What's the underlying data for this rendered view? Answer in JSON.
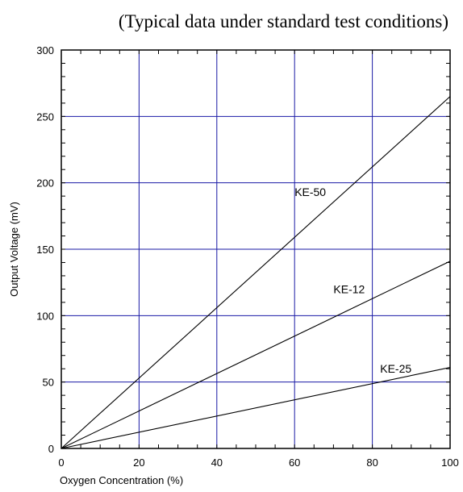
{
  "chart_data": {
    "type": "line",
    "title": "",
    "subtitle": "(Typical data under standard test conditions)",
    "xlabel": "Oxygen Concentration (%)",
    "ylabel": "Output Voltage (mV)",
    "xlim": [
      0,
      100
    ],
    "ylim": [
      0,
      300
    ],
    "xticks": [
      0,
      20,
      40,
      60,
      80,
      100
    ],
    "yticks": [
      0,
      50,
      100,
      150,
      200,
      250,
      300
    ],
    "grid": true,
    "legend": "none",
    "colors": {
      "grid": "#1a1aa6",
      "series": "#000000",
      "frame": "#000000"
    },
    "series": [
      {
        "name": "KE-50",
        "x": [
          0,
          100
        ],
        "y": [
          0,
          265
        ],
        "label_at": [
          60,
          190
        ]
      },
      {
        "name": "KE-12",
        "x": [
          0,
          100
        ],
        "y": [
          0,
          141
        ],
        "label_at": [
          70,
          117
        ]
      },
      {
        "name": "KE-25",
        "x": [
          0,
          100
        ],
        "y": [
          0,
          61
        ],
        "label_at": [
          82,
          57
        ]
      }
    ]
  }
}
